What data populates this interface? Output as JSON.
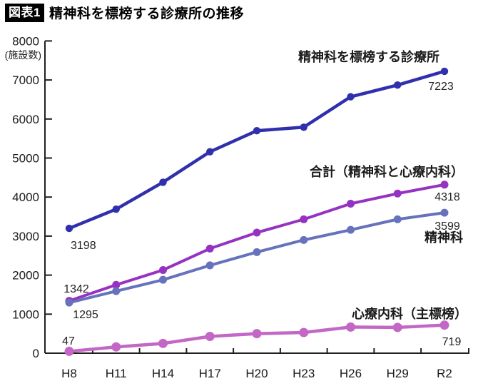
{
  "header": {
    "badge": "図表1",
    "title": "精神科を標榜する診療所の推移"
  },
  "chart_data": {
    "type": "line",
    "title": "精神科を標榜する診療所の推移",
    "ylabel_unit": "(施設数)",
    "ylim": [
      0,
      8000
    ],
    "ytick_step": 1000,
    "grid": false,
    "legend_position": "inline-labels",
    "categories": [
      "H8",
      "H11",
      "H14",
      "H17",
      "H20",
      "H23",
      "H26",
      "H29",
      "R2"
    ],
    "series": [
      {
        "name": "精神科を標榜する診療所",
        "color": "#3030ad",
        "values": [
          3198,
          3690,
          4380,
          5160,
          5700,
          5790,
          6570,
          6870,
          7223
        ]
      },
      {
        "name": "合計（精神科と心療内科）",
        "color": "#9632c2",
        "values": [
          1342,
          1750,
          2130,
          2680,
          3090,
          3430,
          3830,
          4090,
          4318
        ]
      },
      {
        "name": "精神科",
        "color": "#6672bb",
        "values": [
          1295,
          1590,
          1880,
          2250,
          2590,
          2900,
          3160,
          3430,
          3599
        ]
      },
      {
        "name": "心療内科（主標榜）",
        "color": "#c367c6",
        "values": [
          47,
          160,
          250,
          430,
          500,
          530,
          670,
          660,
          719
        ]
      }
    ],
    "point_annotations": [
      {
        "id": "a3198",
        "series": 0,
        "point": 0,
        "text": "3198"
      },
      {
        "id": "a7223",
        "series": 0,
        "point": 8,
        "text": "7223"
      },
      {
        "id": "a1342",
        "series": 1,
        "point": 0,
        "text": "1342"
      },
      {
        "id": "a4318",
        "series": 1,
        "point": 8,
        "text": "4318"
      },
      {
        "id": "a1295",
        "series": 2,
        "point": 0,
        "text": "1295"
      },
      {
        "id": "a3599",
        "series": 2,
        "point": 8,
        "text": "3599"
      },
      {
        "id": "a47",
        "series": 3,
        "point": 0,
        "text": "47"
      },
      {
        "id": "a719",
        "series": 3,
        "point": 8,
        "text": "719"
      }
    ],
    "axis_color": "#231f20",
    "text_color": "#1a1a1a"
  }
}
